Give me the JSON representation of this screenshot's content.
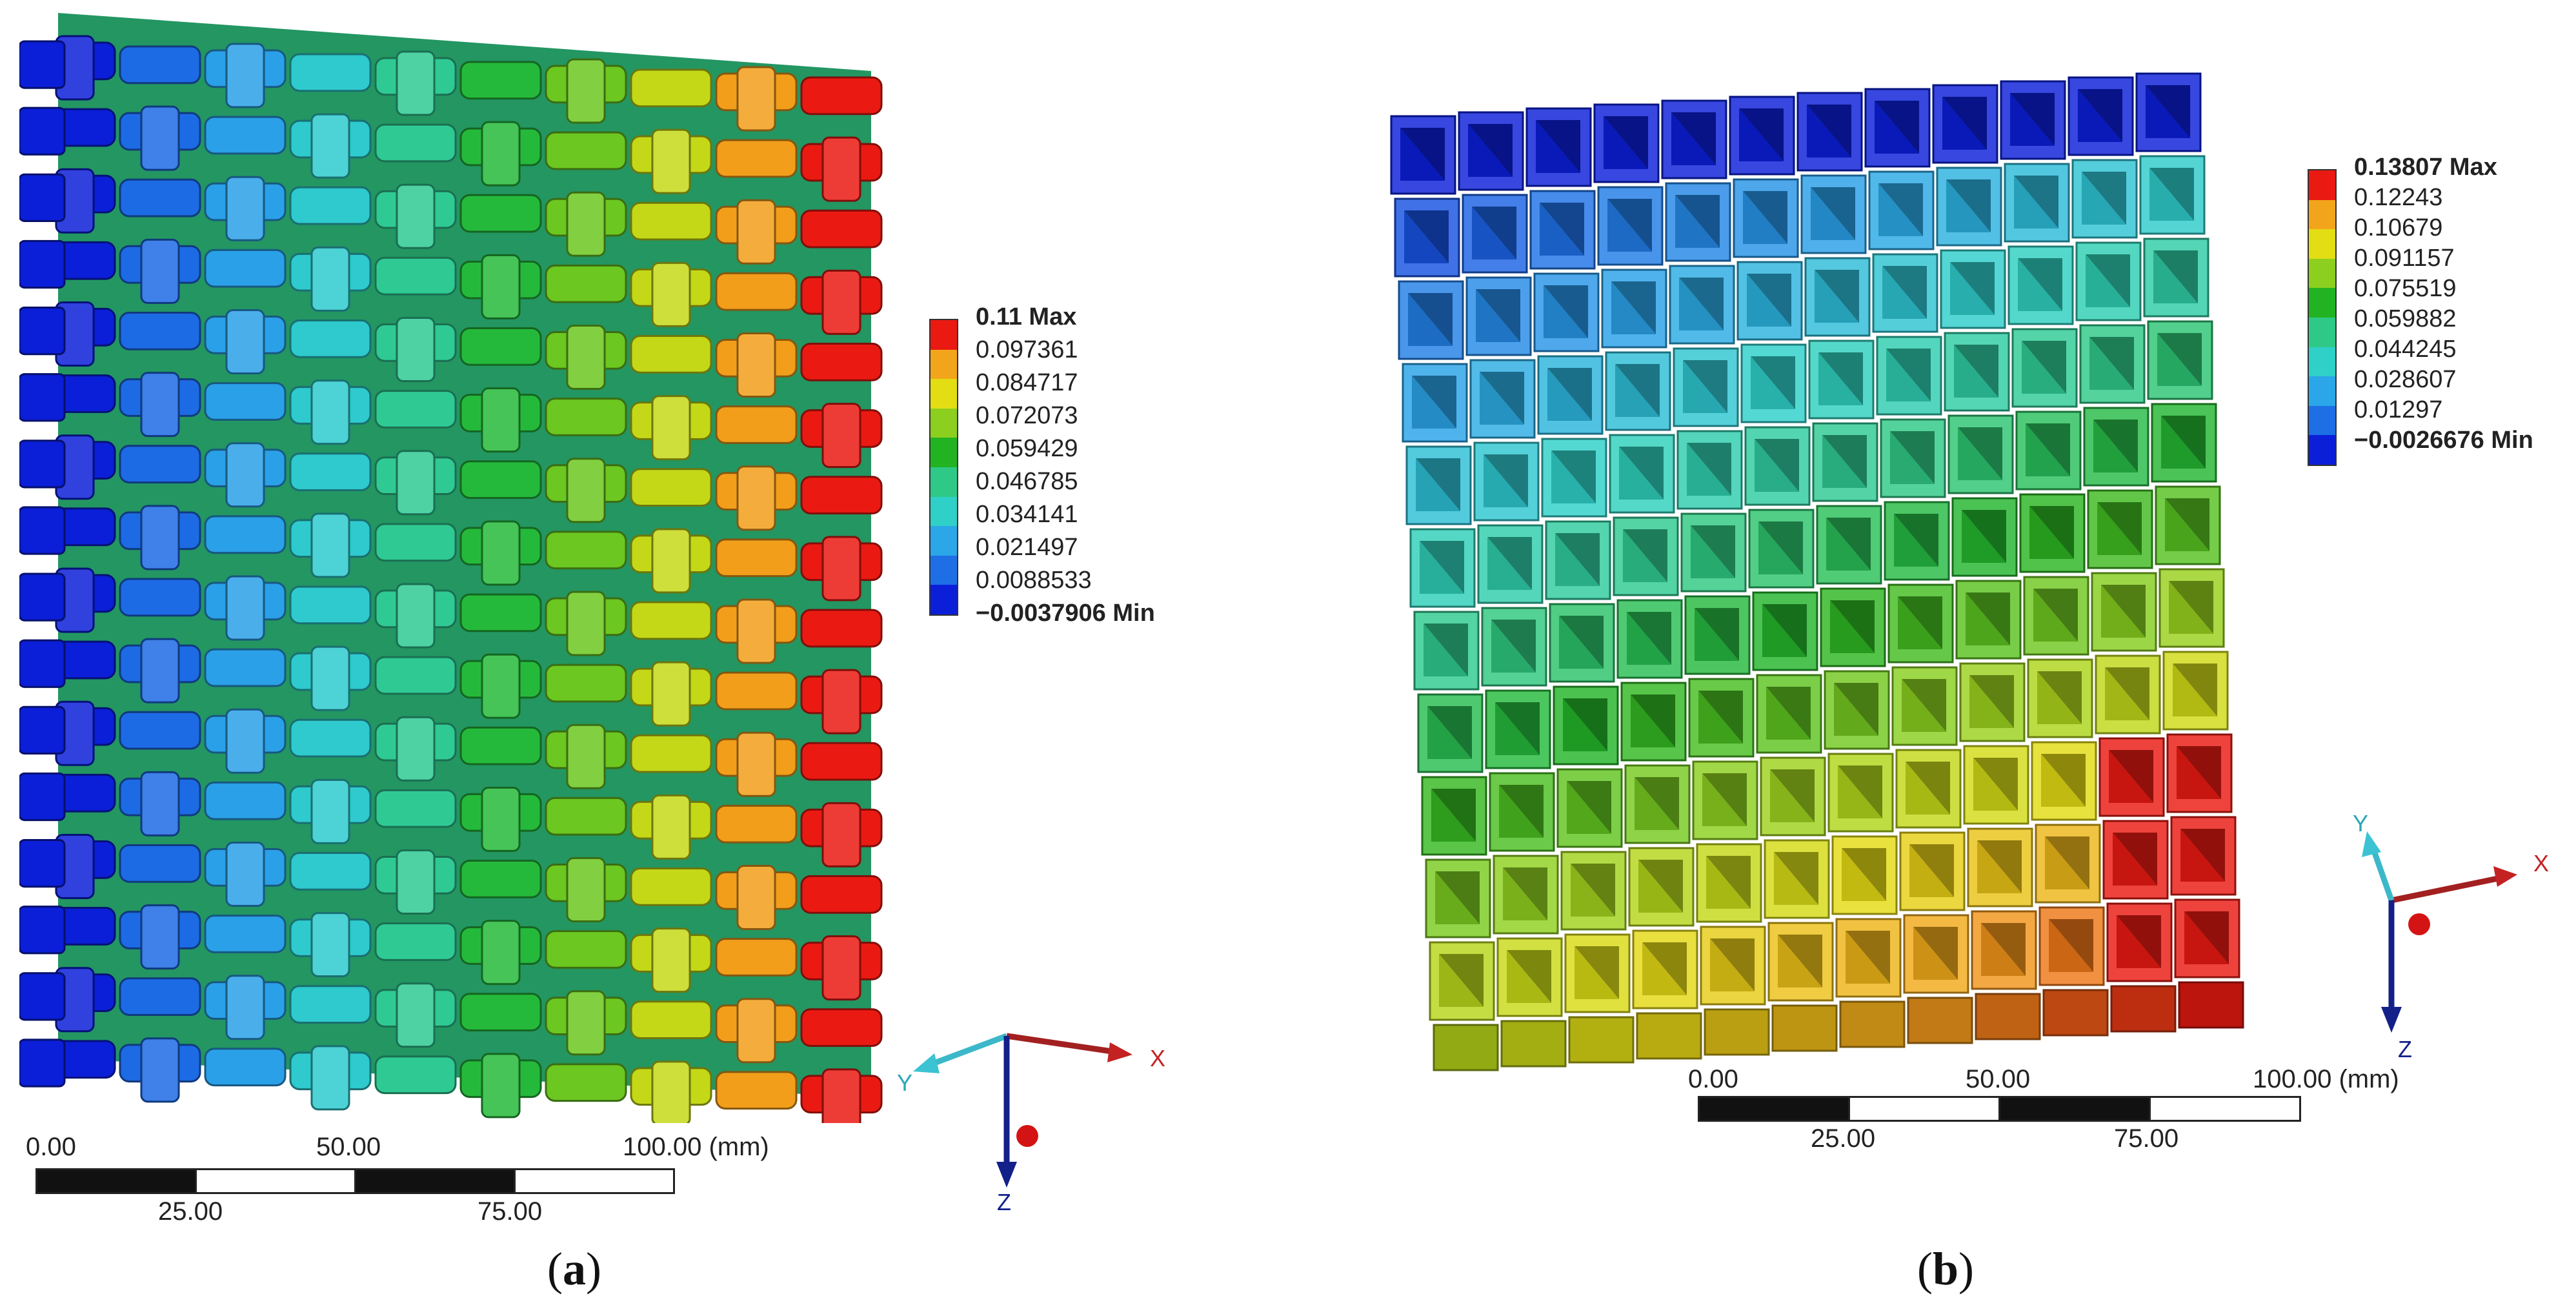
{
  "panels": [
    {
      "caption_letter": "a",
      "caption_open": "(",
      "caption_close": ")",
      "legend": {
        "max_label": "0.11 Max",
        "min_label": "−0.0037906 Min",
        "ticks": [
          "0.097361",
          "0.084717",
          "0.072073",
          "0.059429",
          "0.046785",
          "0.034141",
          "0.021497",
          "0.0088533"
        ]
      },
      "scale_bar": {
        "top_labels": [
          "0.00",
          "50.00",
          "100.00 (mm)"
        ],
        "bottom_labels": [
          "25.00",
          "75.00"
        ]
      },
      "axes": {
        "x": "X",
        "y": "Y",
        "z": "Z"
      }
    },
    {
      "caption_letter": "b",
      "caption_open": "(",
      "caption_close": ")",
      "legend": {
        "max_label": "0.13807 Max",
        "min_label": "−0.0026676 Min",
        "ticks": [
          "0.12243",
          "0.10679",
          "0.091157",
          "0.075519",
          "0.059882",
          "0.044245",
          "0.028607",
          "0.01297"
        ]
      },
      "scale_bar": {
        "top_labels": [
          "0.00",
          "50.00",
          "100.00 (mm)"
        ],
        "bottom_labels": [
          "25.00",
          "75.00"
        ]
      },
      "axes": {
        "x": "X",
        "y": "Y",
        "z": "Z"
      }
    }
  ],
  "colormap": [
    "#0b1fd8",
    "#1e6ee6",
    "#2ba6e8",
    "#2fd0c8",
    "#2fc987",
    "#22b322",
    "#8ccf1f",
    "#e3dd14",
    "#f2a51b",
    "#ea1a12"
  ]
}
